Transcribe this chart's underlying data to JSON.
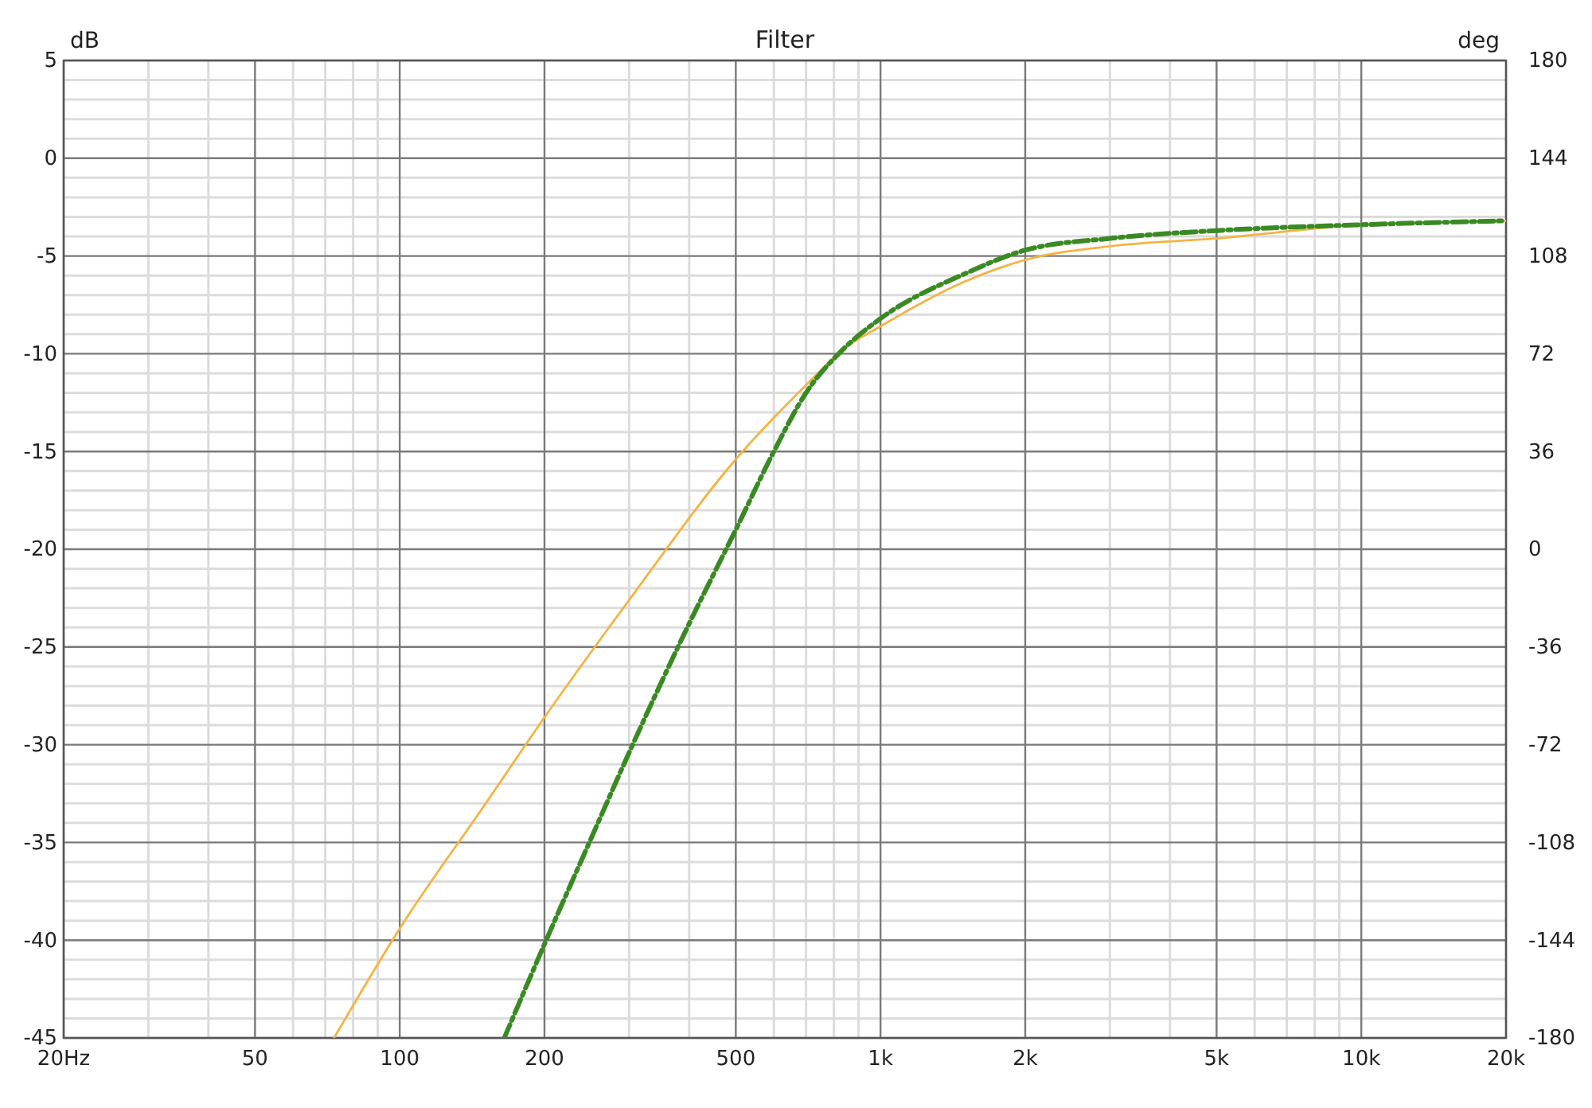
{
  "chart_data": {
    "type": "line",
    "title": "Filter",
    "ylabel": "dB",
    "y2label": "deg",
    "log": "x",
    "grid": true,
    "marker": "none",
    "xlim": [
      20,
      20000
    ],
    "xticks": [
      {
        "value": 20,
        "label": "20Hz"
      },
      {
        "value": 30,
        "label": null
      },
      {
        "value": 40,
        "label": null
      },
      50,
      {
        "value": 60,
        "label": null
      },
      {
        "value": 70,
        "label": null
      },
      {
        "value": 80,
        "label": null
      },
      {
        "value": 90,
        "label": null
      },
      100,
      200,
      {
        "value": 300,
        "label": null
      },
      {
        "value": 400,
        "label": null
      },
      500,
      {
        "value": 600,
        "label": null
      },
      {
        "value": 700,
        "label": null
      },
      {
        "value": 800,
        "label": null
      },
      {
        "value": 900,
        "label": null
      },
      {
        "value": 1000,
        "label": "1k"
      },
      {
        "value": 2000,
        "label": "2k"
      },
      {
        "value": 3000,
        "label": null
      },
      {
        "value": 4000,
        "label": null
      },
      {
        "value": 5000,
        "label": "5k"
      },
      {
        "value": 6000,
        "label": null
      },
      {
        "value": 7000,
        "label": null
      },
      {
        "value": 8000,
        "label": null
      },
      {
        "value": 9000,
        "label": null
      },
      {
        "value": 10000,
        "label": "10k"
      },
      {
        "value": 20000,
        "label": "20k"
      }
    ],
    "ylim": [
      -45,
      5
    ],
    "yticks": [
      5,
      {
        "value": 4,
        "label": null
      },
      {
        "value": 3,
        "label": null
      },
      {
        "value": 2,
        "label": null
      },
      {
        "value": 1,
        "label": null
      },
      0,
      {
        "value": -1,
        "label": null
      },
      {
        "value": -2,
        "label": null
      },
      {
        "value": -3,
        "label": null
      },
      {
        "value": -4,
        "label": null
      },
      -5,
      {
        "value": -6,
        "label": null
      },
      {
        "value": -7,
        "label": null
      },
      {
        "value": -8,
        "label": null
      },
      {
        "value": -9,
        "label": null
      },
      -10,
      {
        "value": -11,
        "label": null
      },
      {
        "value": -12,
        "label": null
      },
      {
        "value": -13,
        "label": null
      },
      {
        "value": -14,
        "label": null
      },
      -15,
      {
        "value": -16,
        "label": null
      },
      {
        "value": -17,
        "label": null
      },
      {
        "value": -18,
        "label": null
      },
      {
        "value": -19,
        "label": null
      },
      -20,
      {
        "value": -21,
        "label": null
      },
      {
        "value": -22,
        "label": null
      },
      {
        "value": -23,
        "label": null
      },
      {
        "value": -24,
        "label": null
      },
      -25,
      {
        "value": -26,
        "label": null
      },
      {
        "value": -27,
        "label": null
      },
      {
        "value": -28,
        "label": null
      },
      {
        "value": -29,
        "label": null
      },
      -30,
      {
        "value": -31,
        "label": null
      },
      {
        "value": -32,
        "label": null
      },
      {
        "value": -33,
        "label": null
      },
      {
        "value": -34,
        "label": null
      },
      -35,
      {
        "value": -36,
        "label": null
      },
      {
        "value": -37,
        "label": null
      },
      {
        "value": -38,
        "label": null
      },
      {
        "value": -39,
        "label": null
      },
      -40,
      {
        "value": -41,
        "label": null
      },
      {
        "value": -42,
        "label": null
      },
      {
        "value": -43,
        "label": null
      },
      {
        "value": -44,
        "label": null
      },
      -45
    ],
    "y2lim": [
      -180,
      180
    ],
    "y2ticks": [
      -180,
      -144,
      -108,
      -72,
      -36,
      0,
      36,
      72,
      108,
      144,
      180
    ],
    "series": [
      {
        "color": "#f5b342",
        "line_style": "solid",
        "x": [
          73,
          100,
          150,
          200,
          300,
          500,
          700,
          834,
          1000,
          1500,
          2000,
          3000,
          5000,
          10000,
          20000
        ],
        "values": [
          -45,
          -39.4,
          -33.1,
          -28.6,
          -22.6,
          -15.4,
          -11.6,
          -9.8,
          -8.6,
          -6.3,
          -5.2,
          -4.5,
          -4.1,
          -3.4,
          -3.2
        ]
      },
      {
        "color": "#3a8a24",
        "line_style": "dashed",
        "x": [
          165,
          200,
          250,
          300,
          400,
          500,
          600,
          700,
          834,
          1000,
          1500,
          2000,
          3000,
          5000,
          10000,
          20000
        ],
        "values": [
          -45,
          -40.2,
          -34.8,
          -30.4,
          -23.8,
          -19,
          -15,
          -12,
          -9.8,
          -8.2,
          -5.9,
          -4.7,
          -4.1,
          -3.7,
          -3.4,
          -3.2
        ]
      }
    ]
  }
}
